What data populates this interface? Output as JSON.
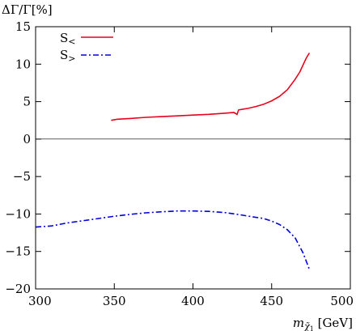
{
  "chart_data": {
    "type": "line",
    "ylabel_parts": {
      "main": "ΔΓ/Γ[%]"
    },
    "xlabel_parts": {
      "main": "m",
      "sub1": "χ̃",
      "sub2": "1",
      "unit": " [GeV]"
    },
    "xlim": [
      300,
      500
    ],
    "ylim": [
      -20,
      15
    ],
    "xticks": [
      300,
      350,
      400,
      450,
      500
    ],
    "yticks": [
      15,
      10,
      5,
      0,
      -5,
      -10,
      -15,
      -20
    ],
    "ytick_labels": [
      "15",
      "10",
      "5",
      "0",
      "−5",
      "−10",
      "−15",
      "−20"
    ],
    "zero_line": true,
    "legend_placement": "top-left",
    "series": [
      {
        "name_main": "S",
        "name_sub": "<",
        "color": "#e8001c",
        "dash": "solid",
        "x": [
          348,
          352,
          360,
          370,
          380,
          390,
          400,
          410,
          420,
          426,
          428,
          429,
          435,
          440,
          445,
          450,
          455,
          460,
          465,
          468,
          470,
          472,
          474
        ],
        "y": [
          2.5,
          2.65,
          2.75,
          2.9,
          3.0,
          3.1,
          3.2,
          3.3,
          3.45,
          3.55,
          3.3,
          3.9,
          4.1,
          4.35,
          4.65,
          5.1,
          5.7,
          6.6,
          8.0,
          9.0,
          9.9,
          10.8,
          11.5
        ]
      },
      {
        "name_main": "S",
        "name_sub": ">",
        "color": "#0000dd",
        "dash": "dashdot",
        "x": [
          300,
          310,
          320,
          330,
          340,
          350,
          360,
          370,
          380,
          390,
          400,
          410,
          420,
          430,
          440,
          445,
          450,
          455,
          460,
          465,
          470,
          472,
          474
        ],
        "y": [
          -11.75,
          -11.6,
          -11.2,
          -10.9,
          -10.6,
          -10.3,
          -10.05,
          -9.85,
          -9.7,
          -9.6,
          -9.6,
          -9.65,
          -9.8,
          -10.1,
          -10.45,
          -10.6,
          -10.95,
          -11.4,
          -12.1,
          -13.2,
          -15.2,
          -16.3,
          -17.4
        ]
      }
    ]
  }
}
